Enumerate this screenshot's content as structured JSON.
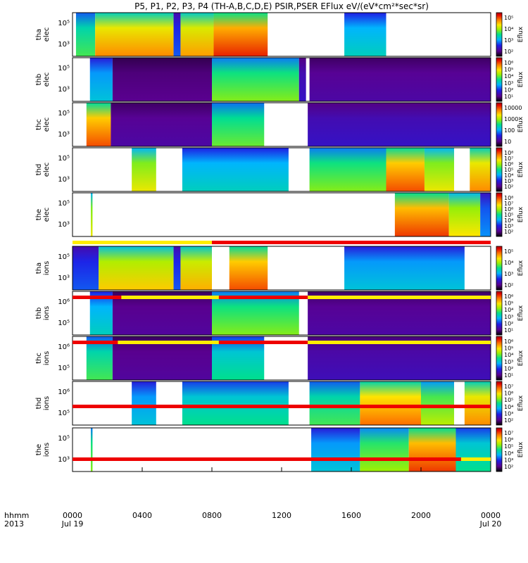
{
  "title": "P5, P1, P2, P3, P4 (TH-A,B,C,D,E) PSIR,PSER EFlux eV/(eV*cm²*sec*sr)",
  "time_axis": {
    "row_label": "hhmm",
    "year_label": "2013",
    "ticks": [
      {
        "hour": 0,
        "label": "0000",
        "date": "Jul 19"
      },
      {
        "hour": 4,
        "label": "0400",
        "date": ""
      },
      {
        "hour": 8,
        "label": "0800",
        "date": ""
      },
      {
        "hour": 12,
        "label": "1200",
        "date": ""
      },
      {
        "hour": 16,
        "label": "1600",
        "date": ""
      },
      {
        "hour": 20,
        "label": "2000",
        "date": ""
      },
      {
        "hour": 24,
        "label": "0000",
        "date": "Jul 20"
      }
    ]
  },
  "chart_data": {
    "type": "heatmap",
    "title": "P5, P1, P2, P3, P4 (TH-A,B,C,D,E) PSIR,PSER EFlux eV/(eV*cm²*sec*sr)",
    "x_range_hours": [
      0,
      24
    ],
    "y_scale": "log",
    "colorbar_label": "Eflux",
    "panels": [
      {
        "name": "tha-elec",
        "ylabel": [
          "tha",
          "elec"
        ],
        "yticks": [
          "10⁵",
          "10³"
        ],
        "cbar_ticks": [
          "10⁵",
          "10⁴",
          "10³",
          "10²"
        ],
        "segments": [
          {
            "t0": 0.2,
            "t1": 1.3,
            "level": 0.55
          },
          {
            "t0": 1.3,
            "t1": 5.8,
            "level": 0.82
          },
          {
            "t0": 5.8,
            "t1": 6.2,
            "level": 0.3
          },
          {
            "t0": 6.2,
            "t1": 8.1,
            "level": 0.8
          },
          {
            "t0": 8.1,
            "t1": 11.2,
            "level": 0.92
          },
          {
            "t0": 15.6,
            "t1": 18.0,
            "level": 0.45
          }
        ]
      },
      {
        "name": "thb-elec",
        "ylabel": [
          "thb",
          "elec"
        ],
        "yticks": [
          "10⁵",
          "10³"
        ],
        "cbar_ticks": [
          "10⁶",
          "10⁵",
          "10⁴",
          "10³",
          "10²",
          "10¹"
        ],
        "segments": [
          {
            "t0": 1.0,
            "t1": 2.3,
            "level": 0.42
          },
          {
            "t0": 2.3,
            "t1": 8.0,
            "level": 0.12
          },
          {
            "t0": 8.0,
            "t1": 13.0,
            "level": 0.6
          },
          {
            "t0": 13.0,
            "t1": 13.4,
            "level": 0.2
          },
          {
            "t0": 13.6,
            "t1": 24.0,
            "level": 0.15
          }
        ]
      },
      {
        "name": "thc-elec",
        "ylabel": [
          "thc",
          "elec"
        ],
        "yticks": [
          "10⁵",
          "10³"
        ],
        "cbar_ticks": [
          "10000",
          "1000",
          "100",
          "10"
        ],
        "segments": [
          {
            "t0": 0.8,
            "t1": 2.2,
            "level": 0.88
          },
          {
            "t0": 2.2,
            "t1": 8.0,
            "level": 0.15
          },
          {
            "t0": 8.0,
            "t1": 11.0,
            "level": 0.58
          },
          {
            "t0": 13.5,
            "t1": 24.0,
            "level": 0.2
          }
        ]
      },
      {
        "name": "thd-elec",
        "ylabel": [
          "thd",
          "elec"
        ],
        "yticks": [
          "10⁵",
          "10³"
        ],
        "cbar_ticks": [
          "10⁸",
          "10⁷",
          "10⁶",
          "10⁵",
          "10⁴",
          "10³",
          "10²"
        ],
        "segments": [
          {
            "t0": 3.4,
            "t1": 4.8,
            "level": 0.7
          },
          {
            "t0": 6.3,
            "t1": 12.4,
            "level": 0.45
          },
          {
            "t0": 13.6,
            "t1": 18.0,
            "level": 0.6
          },
          {
            "t0": 18.0,
            "t1": 20.2,
            "level": 0.88
          },
          {
            "t0": 20.2,
            "t1": 21.9,
            "level": 0.7
          },
          {
            "t0": 22.8,
            "t1": 24.0,
            "level": 0.82
          }
        ]
      },
      {
        "name": "the-elec",
        "ylabel": [
          "the",
          "elec"
        ],
        "yticks": [
          "10⁵",
          "10³"
        ],
        "cbar_ticks": [
          "10⁸",
          "10⁷",
          "10⁶",
          "10⁵",
          "10⁴",
          "10³",
          "10²"
        ],
        "segments": [
          {
            "t0": 1.05,
            "t1": 1.15,
            "level": 0.7
          },
          {
            "t0": 18.5,
            "t1": 21.6,
            "level": 0.9
          },
          {
            "t0": 21.6,
            "t1": 23.4,
            "level": 0.72
          },
          {
            "t0": 23.4,
            "t1": 24.0,
            "level": 0.35
          }
        ]
      },
      {
        "name": "tha-ions",
        "ylabel": [
          "tha",
          "ions"
        ],
        "yticks": [
          "10⁵",
          "10³"
        ],
        "cbar_ticks": [
          "10⁵",
          "10⁴",
          "10³",
          "10²"
        ],
        "segments": [
          {
            "t0": 0.0,
            "t1": 1.5,
            "level": 0.3
          },
          {
            "t0": 1.5,
            "t1": 5.8,
            "level": 0.75
          },
          {
            "t0": 5.8,
            "t1": 6.2,
            "level": 0.3
          },
          {
            "t0": 6.2,
            "t1": 8.0,
            "level": 0.78
          },
          {
            "t0": 9.0,
            "t1": 11.2,
            "level": 0.88
          },
          {
            "t0": 15.6,
            "t1": 22.5,
            "level": 0.42
          }
        ]
      },
      {
        "name": "thb-ions",
        "ylabel": [
          "thb",
          "ions"
        ],
        "yticks": [
          "10⁶",
          "10⁵"
        ],
        "cbar_ticks": [
          "10⁶",
          "10⁵",
          "10⁴",
          "10³",
          "10²",
          "10¹"
        ],
        "segments": [
          {
            "t0": 1.0,
            "t1": 2.3,
            "level": 0.45
          },
          {
            "t0": 2.3,
            "t1": 8.0,
            "level": 0.14
          },
          {
            "t0": 8.0,
            "t1": 13.0,
            "level": 0.6
          },
          {
            "t0": 13.5,
            "t1": 24.0,
            "level": 0.15
          }
        ]
      },
      {
        "name": "thc-ions",
        "ylabel": [
          "thc",
          "ions"
        ],
        "yticks": [
          "10⁶",
          "10⁵"
        ],
        "cbar_ticks": [
          "10⁶",
          "10⁵",
          "10⁴",
          "10³",
          "10²",
          "10¹"
        ],
        "segments": [
          {
            "t0": 0.8,
            "t1": 2.3,
            "level": 0.55
          },
          {
            "t0": 2.3,
            "t1": 8.0,
            "level": 0.14
          },
          {
            "t0": 8.0,
            "t1": 11.0,
            "level": 0.5
          },
          {
            "t0": 13.5,
            "t1": 24.0,
            "level": 0.18
          }
        ]
      },
      {
        "name": "thd-ions",
        "ylabel": [
          "thd",
          "ions"
        ],
        "yticks": [
          "10⁶",
          "10⁵"
        ],
        "cbar_ticks": [
          "10⁷",
          "10⁶",
          "10⁵",
          "10⁴",
          "10³",
          "10²"
        ],
        "segments": [
          {
            "t0": 3.4,
            "t1": 4.8,
            "level": 0.42
          },
          {
            "t0": 6.3,
            "t1": 12.4,
            "level": 0.5
          },
          {
            "t0": 13.6,
            "t1": 16.5,
            "level": 0.55
          },
          {
            "t0": 16.5,
            "t1": 20.0,
            "level": 0.85
          },
          {
            "t0": 20.0,
            "t1": 21.9,
            "level": 0.65
          },
          {
            "t0": 22.5,
            "t1": 24.0,
            "level": 0.82
          }
        ]
      },
      {
        "name": "the-ions",
        "ylabel": [
          "the",
          "ions"
        ],
        "yticks": [
          "10⁵",
          "10³"
        ],
        "cbar_ticks": [
          "10⁷",
          "10⁶",
          "10⁵",
          "10⁴",
          "10³",
          "10²"
        ],
        "segments": [
          {
            "t0": 1.05,
            "t1": 1.15,
            "level": 0.6
          },
          {
            "t0": 13.7,
            "t1": 16.5,
            "level": 0.42
          },
          {
            "t0": 16.5,
            "t1": 19.3,
            "level": 0.62
          },
          {
            "t0": 19.3,
            "t1": 22.0,
            "level": 0.9
          },
          {
            "t0": 22.0,
            "t1": 24.0,
            "level": 0.5
          }
        ]
      }
    ],
    "mode_bars": [
      {
        "after": "the-elec",
        "segments": [
          {
            "t0": 0.0,
            "t1": 8.0,
            "color": "yellow"
          },
          {
            "t0": 8.0,
            "t1": 24.0,
            "color": "red"
          }
        ]
      },
      {
        "after": "tha-ions",
        "segments": [
          {
            "t0": 0.0,
            "t1": 2.8,
            "color": "red"
          },
          {
            "t0": 2.8,
            "t1": 8.4,
            "color": "yellow"
          },
          {
            "t0": 8.4,
            "t1": 13.5,
            "color": "red"
          },
          {
            "t0": 13.5,
            "t1": 24.0,
            "color": "yellow"
          }
        ]
      },
      {
        "after": "thb-ions",
        "segments": [
          {
            "t0": 0.0,
            "t1": 2.6,
            "color": "red"
          },
          {
            "t0": 2.6,
            "t1": 8.4,
            "color": "yellow"
          },
          {
            "t0": 8.4,
            "t1": 13.5,
            "color": "red"
          },
          {
            "t0": 13.5,
            "t1": 24.0,
            "color": "yellow"
          }
        ]
      },
      {
        "after": "thc-ions",
        "segments": [
          {
            "t0": 0.0,
            "t1": 24.0,
            "color": "red"
          }
        ]
      },
      {
        "after": "thd-ions",
        "segments": [
          {
            "t0": 0.0,
            "t1": 22.3,
            "color": "red"
          },
          {
            "t0": 22.3,
            "t1": 24.0,
            "color": "yellow"
          }
        ]
      }
    ]
  }
}
